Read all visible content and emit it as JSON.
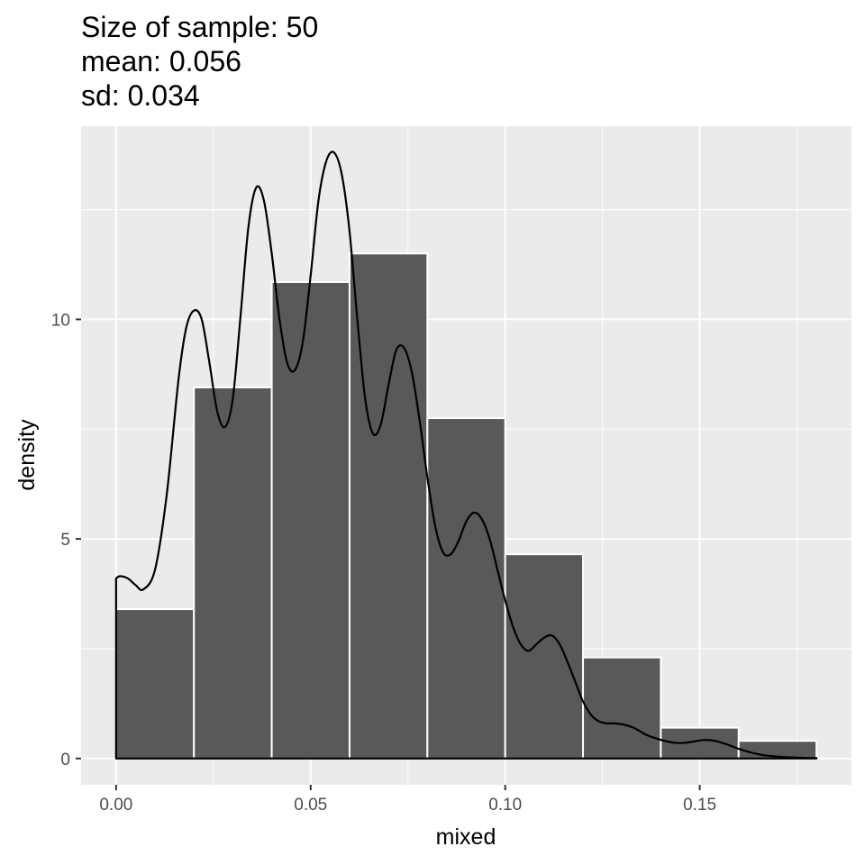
{
  "chart_data": {
    "type": "bar",
    "title_lines": [
      "Size of sample: 50",
      "mean: 0.056",
      "sd: 0.034"
    ],
    "xlabel": "mixed",
    "ylabel": "density",
    "xlim": [
      -0.009,
      0.189
    ],
    "ylim": [
      -0.6,
      14.4
    ],
    "x_ticks": [
      0.0,
      0.05,
      0.1,
      0.15
    ],
    "x_tick_labels": [
      "0.00",
      "0.05",
      "0.10",
      "0.15"
    ],
    "x_minor_ticks": [
      0.025,
      0.075,
      0.125,
      0.175
    ],
    "y_ticks": [
      0,
      5,
      10
    ],
    "y_tick_labels": [
      "0",
      "5",
      "10"
    ],
    "y_minor_ticks": [
      2.5,
      7.5,
      12.5
    ],
    "grid": true,
    "histogram": {
      "bin_edges": [
        0.0,
        0.02,
        0.04,
        0.06,
        0.08,
        0.1,
        0.12,
        0.14,
        0.16,
        0.18
      ],
      "values": [
        3.4,
        8.45,
        10.85,
        11.5,
        7.75,
        4.65,
        2.3,
        0.7,
        0.4
      ],
      "fill_color": "#595959",
      "edge_color": "#ffffff"
    },
    "density_curve": {
      "color": "#000000",
      "x": [
        0.0,
        0.001,
        0.003,
        0.005,
        0.007,
        0.01,
        0.013,
        0.016,
        0.018,
        0.02,
        0.022,
        0.024,
        0.026,
        0.028,
        0.03,
        0.032,
        0.034,
        0.036,
        0.038,
        0.04,
        0.042,
        0.044,
        0.046,
        0.048,
        0.05,
        0.052,
        0.054,
        0.056,
        0.058,
        0.06,
        0.062,
        0.064,
        0.066,
        0.068,
        0.07,
        0.072,
        0.074,
        0.076,
        0.078,
        0.08,
        0.082,
        0.084,
        0.086,
        0.088,
        0.09,
        0.092,
        0.094,
        0.096,
        0.098,
        0.1,
        0.102,
        0.104,
        0.106,
        0.108,
        0.11,
        0.112,
        0.114,
        0.116,
        0.118,
        0.12,
        0.122,
        0.124,
        0.126,
        0.128,
        0.13,
        0.133,
        0.136,
        0.139,
        0.142,
        0.145,
        0.148,
        0.151,
        0.154,
        0.157,
        0.16,
        0.163,
        0.166,
        0.169,
        0.172,
        0.175,
        0.178,
        0.18
      ],
      "y": [
        4.1,
        4.15,
        4.1,
        3.95,
        3.85,
        4.3,
        6.0,
        8.6,
        9.8,
        10.2,
        10.0,
        9.0,
        7.9,
        7.55,
        8.2,
        10.1,
        12.1,
        13.0,
        12.7,
        11.5,
        10.0,
        9.0,
        8.85,
        9.5,
        11.0,
        12.7,
        13.6,
        13.8,
        13.3,
        12.0,
        10.0,
        8.2,
        7.4,
        7.6,
        8.5,
        9.3,
        9.35,
        8.8,
        7.7,
        6.4,
        5.3,
        4.7,
        4.65,
        4.95,
        5.4,
        5.6,
        5.45,
        5.0,
        4.3,
        3.6,
        3.0,
        2.6,
        2.45,
        2.6,
        2.75,
        2.8,
        2.6,
        2.2,
        1.75,
        1.3,
        1.0,
        0.85,
        0.8,
        0.8,
        0.78,
        0.7,
        0.55,
        0.45,
        0.38,
        0.35,
        0.38,
        0.42,
        0.4,
        0.32,
        0.22,
        0.14,
        0.08,
        0.05,
        0.03,
        0.02,
        0.01,
        0.01
      ]
    }
  }
}
